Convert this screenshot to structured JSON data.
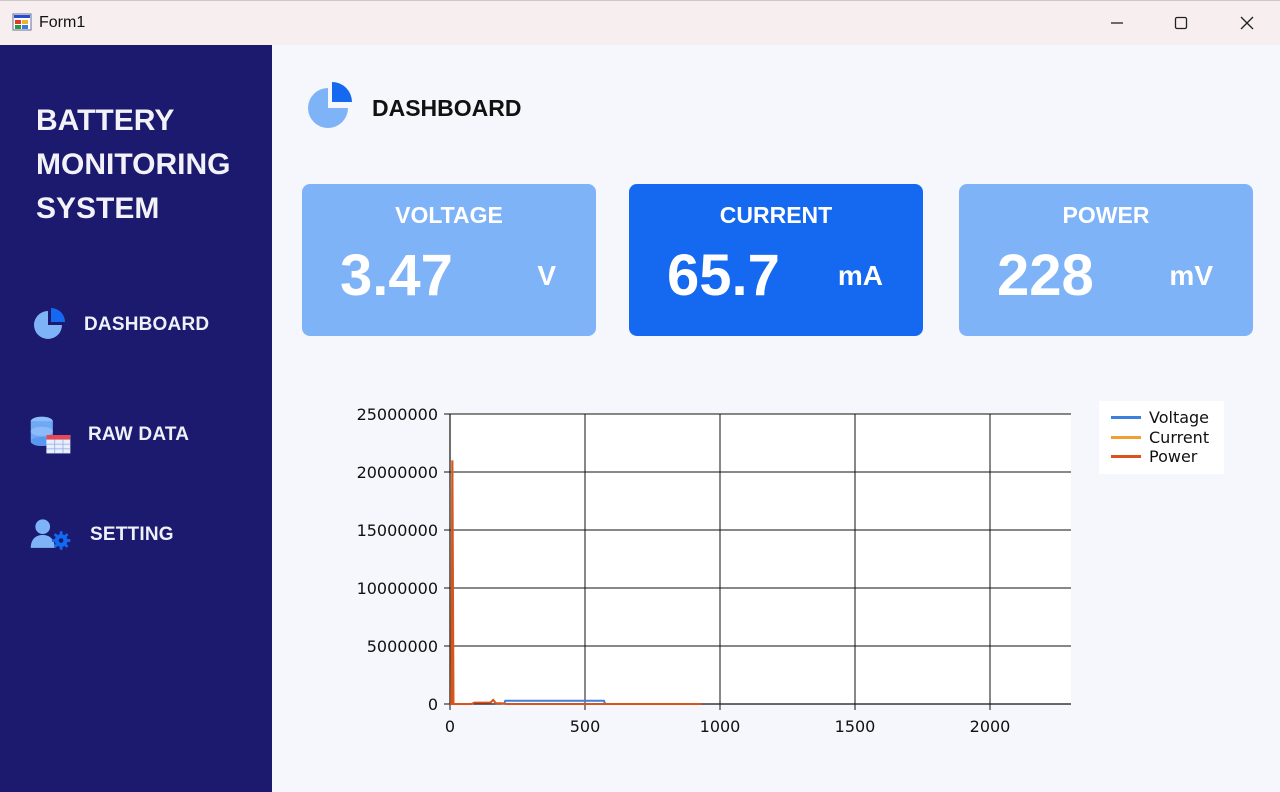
{
  "window": {
    "title": "Form1",
    "app_icon": "form-app-icon",
    "controls": [
      "minimize-icon",
      "maximize-icon",
      "close-icon"
    ]
  },
  "sidebar": {
    "brand_lines": [
      "BATTERY",
      "MONITORING",
      "SYSTEM"
    ],
    "items": [
      {
        "label": "DASHBOARD",
        "icon": "pie-chart-icon"
      },
      {
        "label": "RAW DATA",
        "icon": "database-table-icon"
      },
      {
        "label": "SETTING",
        "icon": "user-settings-icon"
      }
    ],
    "background": "#1b1a6e"
  },
  "header": {
    "title": "DASHBOARD",
    "icon": "pie-chart-icon"
  },
  "cards": [
    {
      "label": "VOLTAGE",
      "value": "3.47",
      "unit": "V",
      "color": "#7fb3f8"
    },
    {
      "label": "CURRENT",
      "value": "65.7",
      "unit": "mA",
      "color": "#1469f0"
    },
    {
      "label": "POWER",
      "value": "228",
      "unit": "mV",
      "color": "#7fb3f8"
    }
  ],
  "chart_data": {
    "type": "line",
    "xlim": [
      0,
      2300
    ],
    "ylim": [
      0,
      25000000
    ],
    "x_ticks": [
      "0",
      "500",
      "1000",
      "1500",
      "2000"
    ],
    "y_ticks": [
      "0",
      "5000000",
      "10000000",
      "15000000",
      "20000000",
      "25000000"
    ],
    "grid": true,
    "legend_position": "top-right",
    "series": [
      {
        "name": "Voltage",
        "color": "#3c7fdc",
        "points": [
          [
            200,
            0
          ],
          [
            205,
            280000
          ],
          [
            570,
            280000
          ],
          [
            575,
            0
          ]
        ]
      },
      {
        "name": "Current",
        "color": "#f0a030",
        "points": [
          [
            0,
            0
          ],
          [
            5,
            0
          ],
          [
            8,
            21000000
          ],
          [
            12,
            0
          ],
          [
            20,
            0
          ]
        ]
      },
      {
        "name": "Power",
        "color": "#d9541c",
        "points": [
          [
            0,
            0
          ],
          [
            6,
            0
          ],
          [
            9,
            21000000
          ],
          [
            13,
            0
          ],
          [
            80,
            0
          ],
          [
            90,
            120000
          ],
          [
            150,
            120000
          ],
          [
            160,
            350000
          ],
          [
            170,
            60000
          ],
          [
            190,
            60000
          ],
          [
            210,
            0
          ],
          [
            930,
            0
          ]
        ]
      }
    ]
  }
}
